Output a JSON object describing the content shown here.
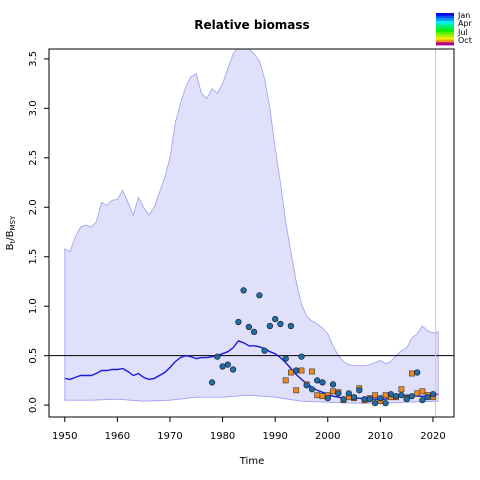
{
  "chart_data": {
    "type": "line",
    "title": "Relative biomass",
    "xlabel": "Time",
    "ylabel_main": "B",
    "ylabel_sub1": "t",
    "ylabel_sep": "/B",
    "ylabel_sub2": "MSY",
    "xlim": [
      1947,
      2024
    ],
    "ylim": [
      -0.12,
      3.6
    ],
    "x_ticks": [
      1950,
      1960,
      1970,
      1980,
      1990,
      2000,
      2010,
      2020
    ],
    "y_ticks": [
      0.0,
      0.5,
      1.0,
      1.5,
      2.0,
      2.5,
      3.0,
      3.5
    ],
    "reference_line_y": 0.5,
    "vertical_line_x": 2020.5,
    "grid": false,
    "legend_position": "top-right, outside plot",
    "legend_labels": [
      "Jan",
      "Apr",
      "Jul",
      "Oct"
    ],
    "colors": {
      "band_fill": "#e0e0fb",
      "band_stroke": "#9d9df0",
      "median_line": "#1a1adf",
      "last_segment": "#d4145a",
      "reference_line": "#000000",
      "vertical_line": "#c8c8c8",
      "circle_fill": "#1f6ea8",
      "square_fill": "#f08a20"
    },
    "series": [
      {
        "kind": "upper_band",
        "x": [
          1950,
          1951,
          1952,
          1953,
          1954,
          1955,
          1956,
          1957,
          1958,
          1959,
          1960,
          1961,
          1962,
          1963,
          1964,
          1965,
          1966,
          1967,
          1968,
          1969,
          1970,
          1971,
          1972,
          1973,
          1974,
          1975,
          1976,
          1977,
          1978,
          1979,
          1980,
          1981,
          1982,
          1983,
          1984,
          1985,
          1986,
          1987,
          1988,
          1989,
          1990,
          1991,
          1992,
          1993,
          1994,
          1995,
          1996,
          1997,
          1998,
          1999,
          2000,
          2001,
          2002,
          2003,
          2004,
          2005,
          2006,
          2007,
          2008,
          2009,
          2010,
          2011,
          2012,
          2013,
          2014,
          2015,
          2016,
          2017,
          2018,
          2019,
          2020,
          2021
        ],
        "y": [
          1.58,
          1.55,
          1.7,
          1.8,
          1.82,
          1.8,
          1.85,
          2.05,
          2.02,
          2.07,
          2.08,
          2.17,
          2.05,
          1.92,
          2.1,
          2.0,
          1.92,
          2.0,
          2.15,
          2.3,
          2.5,
          2.85,
          3.05,
          3.22,
          3.32,
          3.35,
          3.15,
          3.1,
          3.2,
          3.15,
          3.25,
          3.4,
          3.55,
          3.62,
          3.62,
          3.6,
          3.55,
          3.48,
          3.3,
          3.0,
          2.6,
          2.25,
          1.85,
          1.55,
          1.25,
          1.02,
          0.9,
          0.85,
          0.82,
          0.78,
          0.72,
          0.6,
          0.5,
          0.44,
          0.41,
          0.4,
          0.4,
          0.4,
          0.41,
          0.43,
          0.45,
          0.42,
          0.44,
          0.5,
          0.55,
          0.58,
          0.68,
          0.72,
          0.8,
          0.75,
          0.73,
          0.74
        ]
      },
      {
        "kind": "lower_band",
        "x": [
          1950,
          1955,
          1960,
          1965,
          1970,
          1975,
          1980,
          1985,
          1990,
          1995,
          2000,
          2005,
          2010,
          2015,
          2021
        ],
        "y": [
          0.05,
          0.05,
          0.06,
          0.04,
          0.05,
          0.08,
          0.08,
          0.1,
          0.08,
          0.04,
          0.03,
          0.02,
          0.02,
          0.03,
          0.04
        ]
      },
      {
        "kind": "median",
        "x": [
          1950,
          1951,
          1952,
          1953,
          1954,
          1955,
          1956,
          1957,
          1958,
          1959,
          1960,
          1961,
          1962,
          1963,
          1964,
          1965,
          1966,
          1967,
          1968,
          1969,
          1970,
          1971,
          1972,
          1973,
          1974,
          1975,
          1976,
          1977,
          1978,
          1979,
          1980,
          1981,
          1982,
          1983,
          1984,
          1985,
          1986,
          1987,
          1988,
          1989,
          1990,
          1991,
          1992,
          1993,
          1994,
          1995,
          1996,
          1997,
          1998,
          1999,
          2000,
          2001,
          2002,
          2003,
          2004,
          2005,
          2006,
          2007,
          2008,
          2009,
          2010,
          2011,
          2012,
          2013,
          2014,
          2015,
          2016,
          2017,
          2018,
          2019,
          2020
        ],
        "y": [
          0.27,
          0.26,
          0.28,
          0.3,
          0.3,
          0.3,
          0.32,
          0.35,
          0.35,
          0.36,
          0.36,
          0.37,
          0.34,
          0.3,
          0.32,
          0.28,
          0.26,
          0.27,
          0.3,
          0.33,
          0.38,
          0.44,
          0.48,
          0.5,
          0.49,
          0.47,
          0.48,
          0.48,
          0.49,
          0.5,
          0.52,
          0.54,
          0.58,
          0.65,
          0.63,
          0.6,
          0.6,
          0.59,
          0.57,
          0.54,
          0.52,
          0.48,
          0.43,
          0.37,
          0.31,
          0.26,
          0.22,
          0.18,
          0.15,
          0.13,
          0.11,
          0.09,
          0.08,
          0.07,
          0.07,
          0.07,
          0.07,
          0.06,
          0.06,
          0.06,
          0.06,
          0.06,
          0.07,
          0.08,
          0.09,
          0.1,
          0.1,
          0.09,
          0.09,
          0.09,
          0.1
        ]
      },
      {
        "kind": "last_segment",
        "x": [
          2019,
          2020,
          2021
        ],
        "y": [
          0.09,
          0.1,
          0.11
        ]
      },
      {
        "kind": "circle_points",
        "x": [
          1978,
          1979,
          1980,
          1981,
          1982,
          1983,
          1984,
          1985,
          1986,
          1987,
          1988,
          1989,
          1990,
          1991,
          1992,
          1993,
          1994,
          1995,
          1996,
          1997,
          1998,
          1999,
          2000,
          2001,
          2002,
          2003,
          2004,
          2005,
          2006,
          2007,
          2008,
          2009,
          2010,
          2011,
          2012,
          2013,
          2014,
          2015,
          2016,
          2017,
          2018,
          2019,
          2020
        ],
        "y": [
          0.23,
          0.49,
          0.39,
          0.41,
          0.36,
          0.84,
          1.16,
          0.79,
          0.74,
          1.11,
          0.55,
          0.8,
          0.87,
          0.82,
          0.47,
          0.8,
          0.35,
          0.49,
          0.2,
          0.16,
          0.25,
          0.23,
          0.07,
          0.21,
          0.12,
          0.06,
          0.12,
          0.08,
          0.15,
          0.06,
          0.06,
          0.02,
          0.07,
          0.02,
          0.11,
          0.09,
          0.1,
          0.06,
          0.09,
          0.33,
          0.05,
          0.08,
          0.11
        ]
      },
      {
        "kind": "square_points",
        "x": [
          1992,
          1993,
          1994,
          1995,
          1996,
          1997,
          1998,
          1999,
          2000,
          2001,
          2002,
          2003,
          2004,
          2005,
          2006,
          2007,
          2008,
          2009,
          2010,
          2011,
          2012,
          2013,
          2014,
          2015,
          2016,
          2017,
          2018,
          2019,
          2020
        ],
        "y": [
          0.25,
          0.33,
          0.15,
          0.35,
          0.21,
          0.34,
          0.1,
          0.09,
          0.1,
          0.14,
          0.13,
          0.05,
          0.08,
          0.07,
          0.17,
          0.05,
          0.07,
          0.1,
          0.04,
          0.1,
          0.08,
          0.08,
          0.16,
          0.07,
          0.32,
          0.12,
          0.14,
          0.1,
          0.08
        ]
      }
    ]
  }
}
